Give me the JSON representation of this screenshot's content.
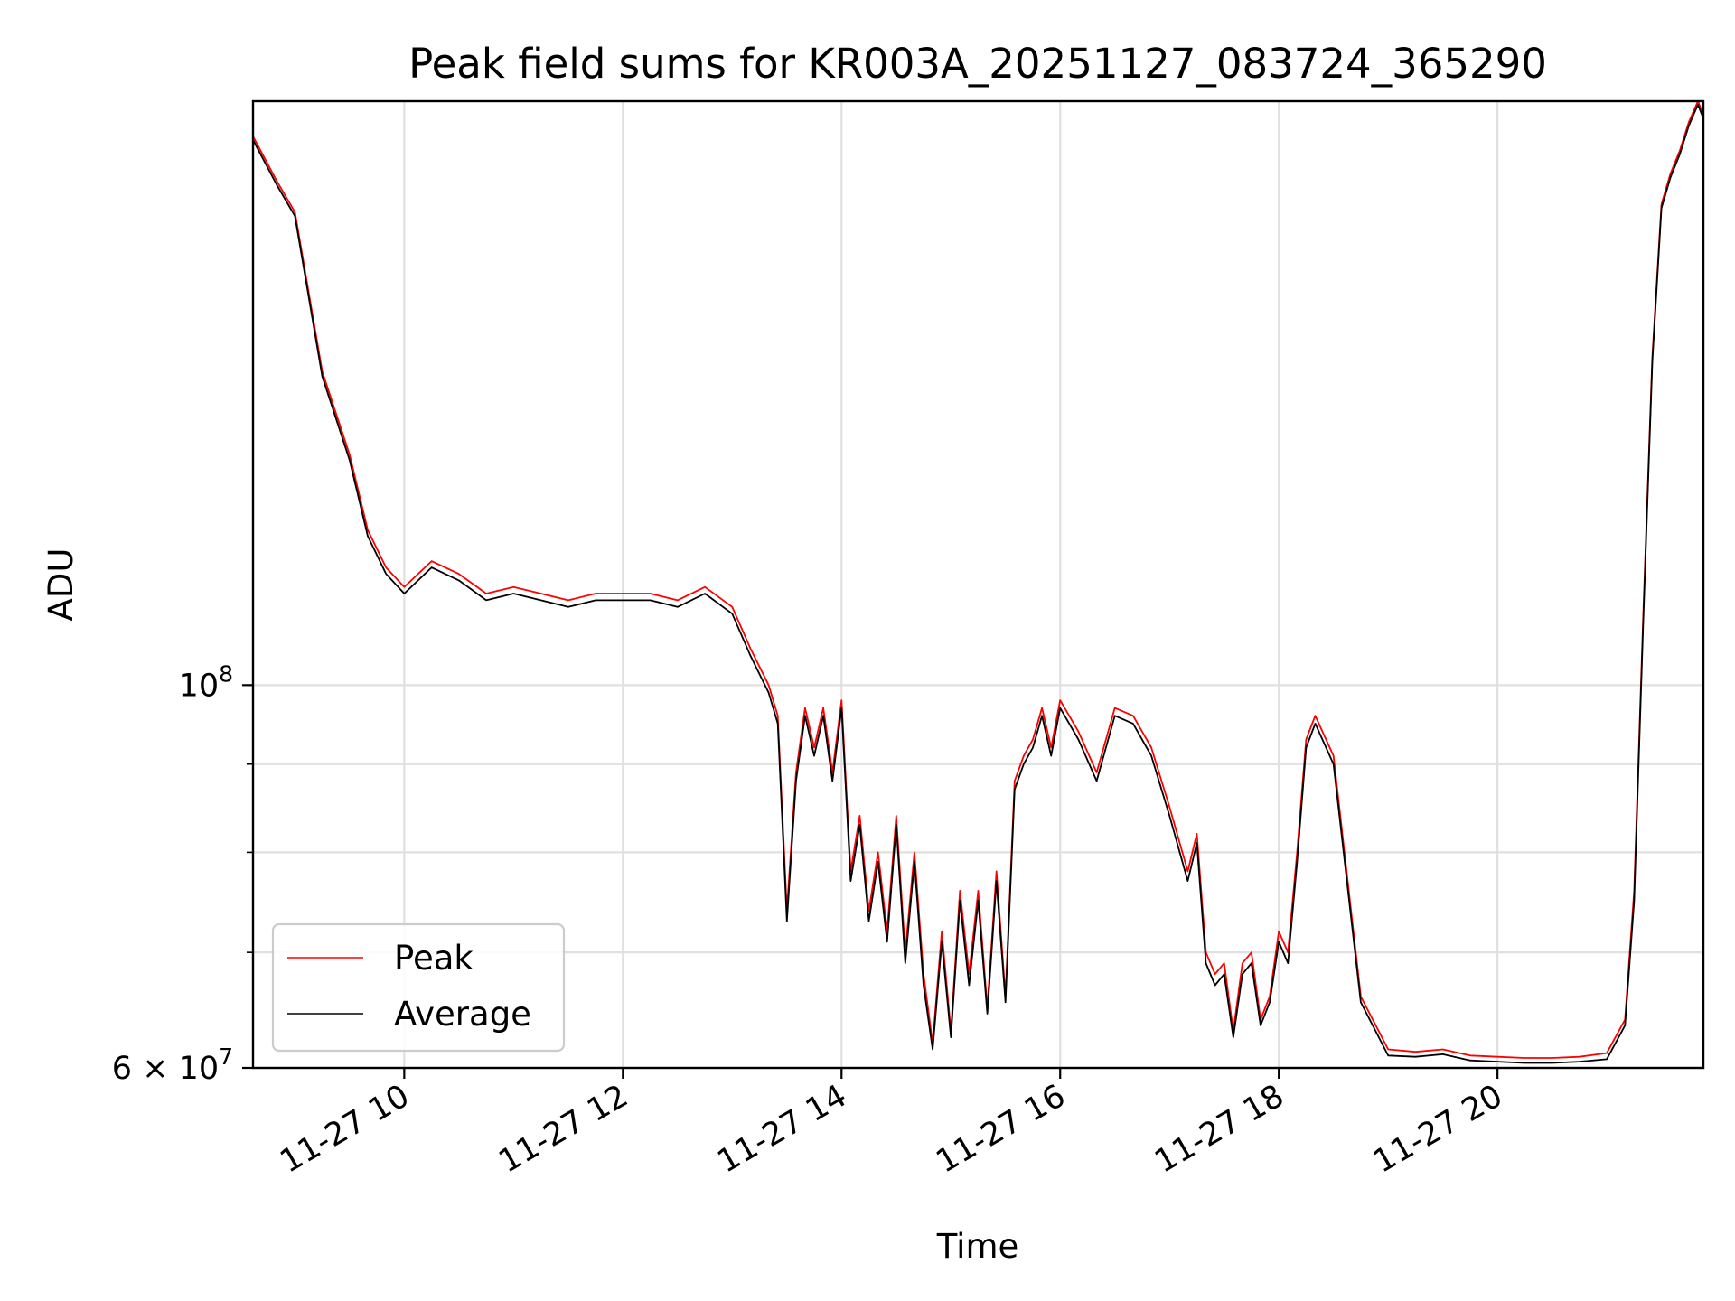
{
  "chart_data": {
    "type": "line",
    "title": "Peak field sums for KR003A_20251127_083724_365290",
    "xlabel": "Time",
    "ylabel": "ADU",
    "x_ticks": [
      "11-27 10",
      "11-27 12",
      "11-27 14",
      "11-27 16",
      "11-27 18",
      "11-27 20"
    ],
    "y_ticks_major": [
      {
        "label_base": "6",
        "label_mid": " × 10",
        "label_exp": "7",
        "value": 60000000
      },
      {
        "label_base": "10",
        "label_exp": "8",
        "value": 100000000
      }
    ],
    "y_ticks_minor": [
      70000000,
      80000000,
      90000000
    ],
    "xlim": [
      "2025-11-27 08:37",
      "2025-11-27 21:53"
    ],
    "ylim": [
      60000000,
      218000000
    ],
    "yscale": "log",
    "grid": true,
    "legend_position": "lower-left",
    "x": [
      "08:37",
      "08:50",
      "09:00",
      "09:15",
      "09:30",
      "09:40",
      "09:50",
      "10:00",
      "10:15",
      "10:30",
      "10:45",
      "11:00",
      "11:15",
      "11:30",
      "11:45",
      "12:00",
      "12:15",
      "12:30",
      "12:45",
      "13:00",
      "13:10",
      "13:20",
      "13:25",
      "13:30",
      "13:35",
      "13:40",
      "13:45",
      "13:50",
      "13:55",
      "14:00",
      "14:05",
      "14:10",
      "14:15",
      "14:20",
      "14:25",
      "14:30",
      "14:35",
      "14:40",
      "14:45",
      "14:50",
      "14:55",
      "15:00",
      "15:05",
      "15:10",
      "15:15",
      "15:20",
      "15:25",
      "15:30",
      "15:35",
      "15:40",
      "15:45",
      "15:50",
      "15:55",
      "16:00",
      "16:10",
      "16:20",
      "16:30",
      "16:40",
      "16:50",
      "17:00",
      "17:10",
      "17:15",
      "17:20",
      "17:25",
      "17:30",
      "17:35",
      "17:40",
      "17:45",
      "17:50",
      "17:55",
      "18:00",
      "18:05",
      "18:10",
      "18:15",
      "18:20",
      "18:30",
      "18:45",
      "19:00",
      "19:15",
      "19:30",
      "19:45",
      "20:00",
      "20:15",
      "20:30",
      "20:45",
      "21:00",
      "21:10",
      "21:15",
      "21:20",
      "21:25",
      "21:30",
      "21:35",
      "21:40",
      "21:45",
      "21:50",
      "21:53"
    ],
    "series": [
      {
        "name": "Peak",
        "color": "#ff0000",
        "values": [
          208000000,
          196000000,
          188000000,
          152000000,
          136000000,
          123000000,
          117000000,
          114000000,
          118000000,
          116000000,
          113000000,
          114000000,
          113000000,
          112000000,
          113000000,
          113000000,
          113000000,
          112000000,
          114000000,
          111000000,
          105000000,
          100000000,
          96000000,
          74000000,
          89000000,
          97000000,
          92000000,
          97000000,
          89000000,
          98000000,
          78000000,
          84000000,
          74000000,
          80000000,
          72000000,
          84000000,
          70000000,
          80000000,
          68000000,
          62000000,
          72000000,
          63000000,
          76000000,
          68000000,
          76000000,
          65000000,
          78000000,
          66000000,
          88000000,
          91000000,
          93000000,
          97000000,
          92000000,
          98000000,
          94000000,
          89000000,
          97000000,
          96000000,
          92000000,
          85000000,
          78000000,
          82000000,
          70000000,
          68000000,
          69000000,
          63000000,
          69000000,
          70000000,
          64000000,
          66000000,
          72000000,
          70000000,
          80000000,
          93000000,
          96000000,
          91000000,
          66000000,
          61500000,
          61300000,
          61500000,
          61000000,
          60900000,
          60800000,
          60800000,
          60900000,
          61200000,
          64000000,
          76000000,
          110000000,
          155000000,
          190000000,
          198000000,
          204000000,
          212000000,
          218000000,
          214000000
        ]
      },
      {
        "name": "Average",
        "color": "#000000",
        "values": [
          207000000,
          195000000,
          187000000,
          151000000,
          135000000,
          122000000,
          116000000,
          113000000,
          117000000,
          115000000,
          112000000,
          113000000,
          112000000,
          111000000,
          112000000,
          112000000,
          112000000,
          111000000,
          113000000,
          110000000,
          104000000,
          99000000,
          95000000,
          73000000,
          88000000,
          96000000,
          91000000,
          96000000,
          88000000,
          97000000,
          77000000,
          83000000,
          73000000,
          79000000,
          71000000,
          83000000,
          69000000,
          79000000,
          67000000,
          61500000,
          71000000,
          62500000,
          75000000,
          67000000,
          75000000,
          64500000,
          77000000,
          65500000,
          87000000,
          90000000,
          92000000,
          96000000,
          91000000,
          97000000,
          93000000,
          88000000,
          96000000,
          95000000,
          91000000,
          84000000,
          77000000,
          81000000,
          69000000,
          67000000,
          68000000,
          62500000,
          68000000,
          69000000,
          63500000,
          65500000,
          71000000,
          69000000,
          79000000,
          92000000,
          95000000,
          90000000,
          65500000,
          61000000,
          60900000,
          61100000,
          60600000,
          60500000,
          60400000,
          60400000,
          60500000,
          60700000,
          63500000,
          75000000,
          109000000,
          154000000,
          189000000,
          197000000,
          203000000,
          211000000,
          217000000,
          213000000
        ]
      }
    ]
  }
}
